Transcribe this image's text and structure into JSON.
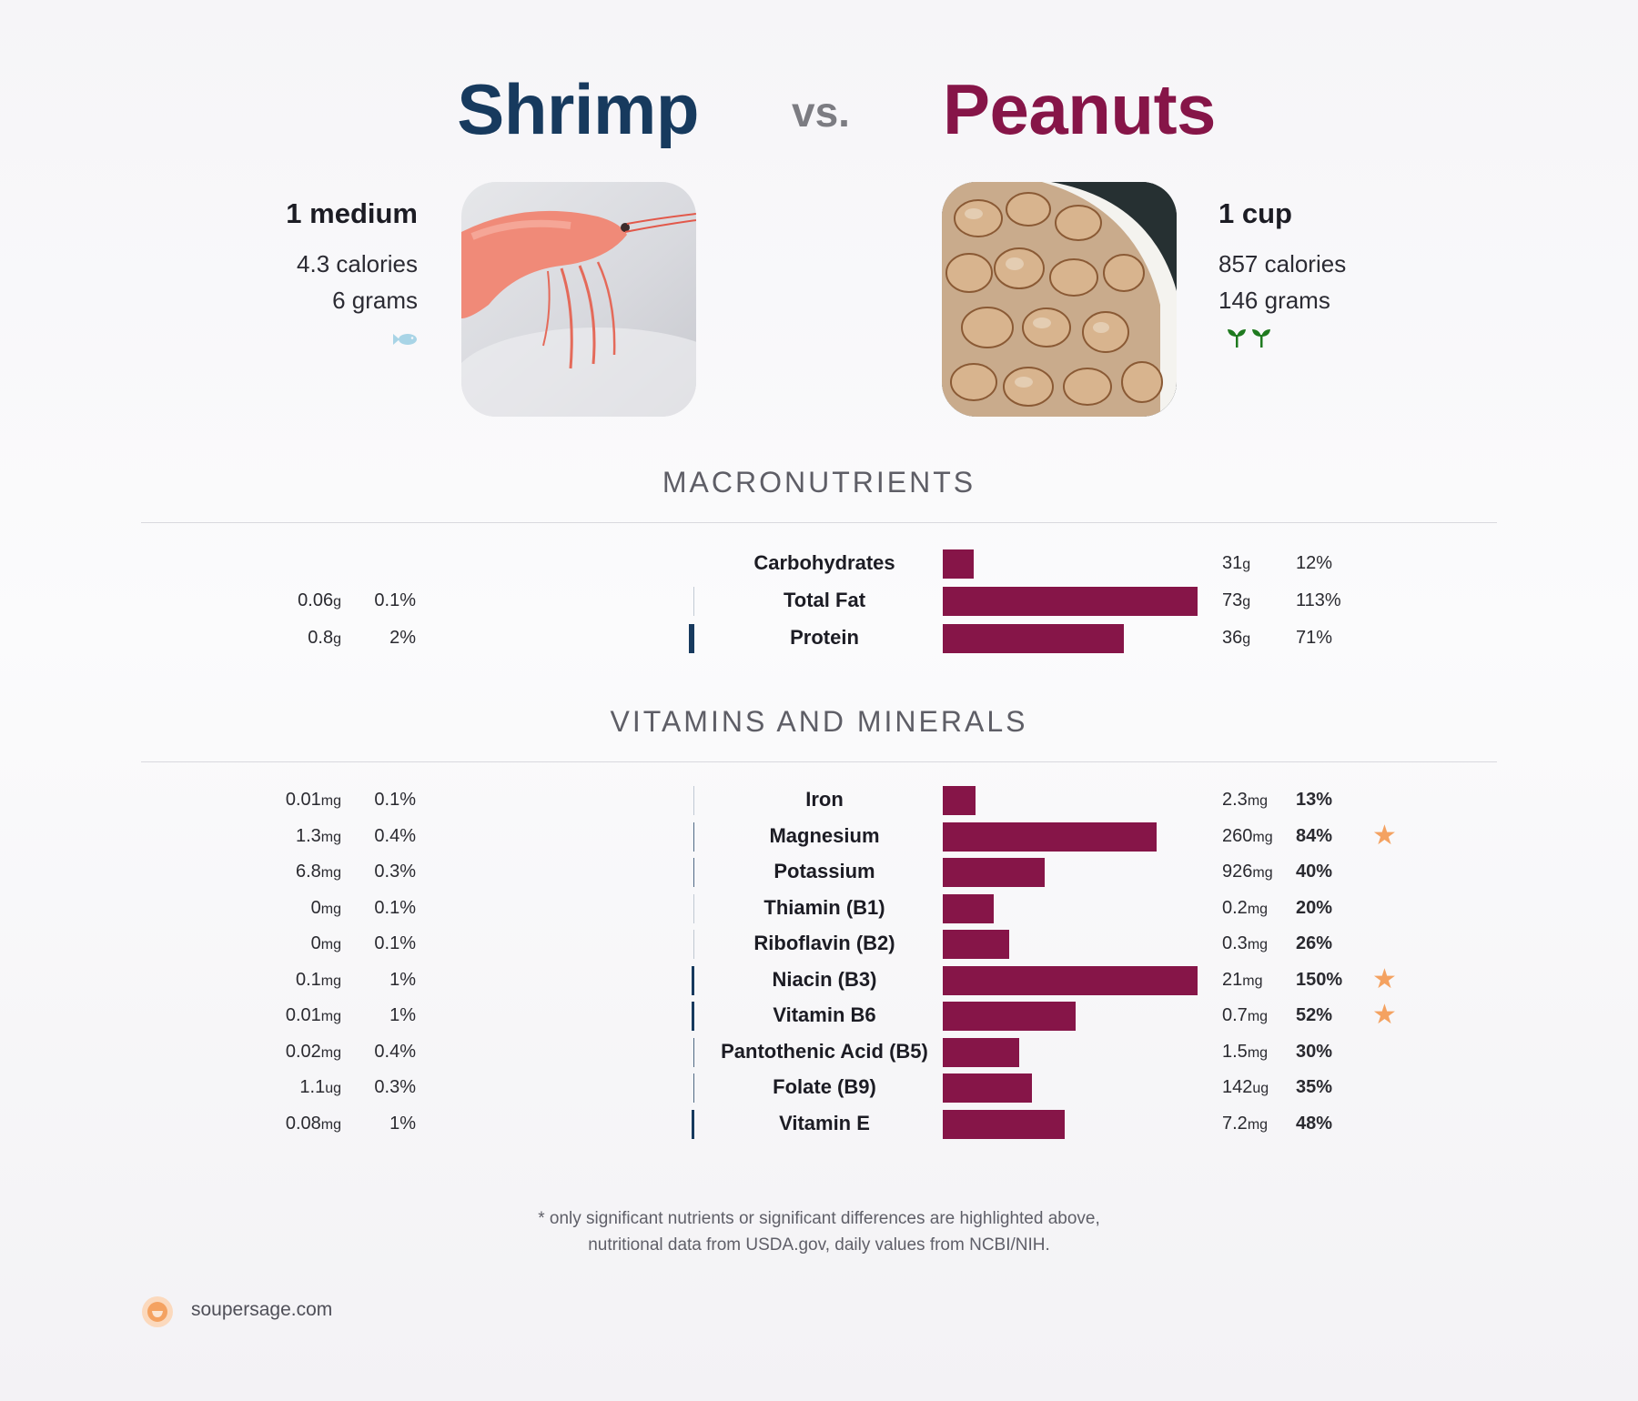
{
  "header": {
    "left_title": "Shrimp",
    "vs": "vs.",
    "right_title": "Peanuts"
  },
  "foods": {
    "left": {
      "serving": "1 medium",
      "calories": "4.3 calories",
      "grams": "6 grams",
      "icon": "fish-icon",
      "icon_color": "#a8d4e6"
    },
    "right": {
      "serving": "1 cup",
      "calories": "857 calories",
      "grams": "146 grams",
      "icon": "sprout-icon",
      "icon_color": "#1f7a1f"
    }
  },
  "sections": {
    "macros": "MACRONUTRIENTS",
    "vitamins": "VITAMINS AND MINERALS"
  },
  "colors": {
    "left": "#173a5e",
    "right": "#861548",
    "star": "#f4a261"
  },
  "chart_data": [
    {
      "type": "bar",
      "title": "MACRONUTRIENTS",
      "categories": [
        "Carbohydrates",
        "Total Fat",
        "Protein"
      ],
      "series": [
        {
          "name": "Shrimp",
          "amounts": [
            "",
            "0.06",
            "0.8"
          ],
          "units": [
            "",
            "g",
            "g"
          ],
          "pct_labels": [
            "",
            "0.1%",
            "2%"
          ],
          "values": [
            0,
            0.1,
            2
          ]
        },
        {
          "name": "Peanuts",
          "amounts": [
            "31",
            "73",
            "36"
          ],
          "units": [
            "g",
            "g",
            "g"
          ],
          "pct_labels": [
            "12%",
            "113%",
            "71%"
          ],
          "values": [
            12,
            113,
            71
          ]
        }
      ],
      "stars": [
        false,
        false,
        false
      ]
    },
    {
      "type": "bar",
      "title": "VITAMINS AND MINERALS",
      "categories": [
        "Iron",
        "Magnesium",
        "Potassium",
        "Thiamin (B1)",
        "Riboflavin (B2)",
        "Niacin (B3)",
        "Vitamin B6",
        "Pantothenic Acid (B5)",
        "Folate (B9)",
        "Vitamin E"
      ],
      "series": [
        {
          "name": "Shrimp",
          "amounts": [
            "0.01",
            "1.3",
            "6.8",
            "0",
            "0",
            "0.1",
            "0.01",
            "0.02",
            "1.1",
            "0.08"
          ],
          "units": [
            "mg",
            "mg",
            "mg",
            "mg",
            "mg",
            "mg",
            "mg",
            "mg",
            "ug",
            "mg"
          ],
          "pct_labels": [
            "0.1%",
            "0.4%",
            "0.3%",
            "0.1%",
            "0.1%",
            "1%",
            "1%",
            "0.4%",
            "0.3%",
            "1%"
          ],
          "values": [
            0.1,
            0.4,
            0.3,
            0.1,
            0.1,
            1,
            1,
            0.4,
            0.3,
            1
          ]
        },
        {
          "name": "Peanuts",
          "amounts": [
            "2.3",
            "260",
            "926",
            "0.2",
            "0.3",
            "21",
            "0.7",
            "1.5",
            "142",
            "7.2"
          ],
          "units": [
            "mg",
            "mg",
            "mg",
            "mg",
            "mg",
            "mg",
            "mg",
            "mg",
            "ug",
            "mg"
          ],
          "pct_labels": [
            "13%",
            "84%",
            "40%",
            "20%",
            "26%",
            "150%",
            "52%",
            "30%",
            "35%",
            "48%"
          ],
          "values": [
            13,
            84,
            40,
            20,
            26,
            150,
            52,
            30,
            35,
            48
          ]
        }
      ],
      "stars": [
        false,
        true,
        false,
        false,
        false,
        true,
        true,
        false,
        false,
        false
      ]
    }
  ],
  "footnote": {
    "line1": "* only significant nutrients or significant differences are highlighted above,",
    "line2": "nutritional data from USDA.gov, daily values from NCBI/NIH."
  },
  "footer": {
    "site": "soupersage.com",
    "logo_color": "#f4a261"
  }
}
